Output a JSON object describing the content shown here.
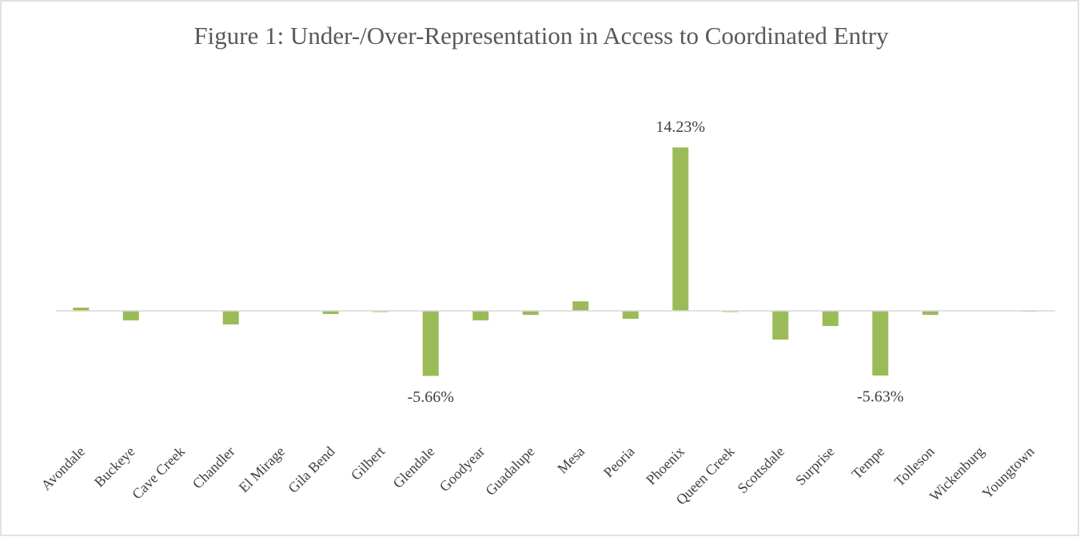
{
  "chart_data": {
    "type": "bar",
    "title": "Figure 1: Under-/Over-Representation in Access to Coordinated Entry",
    "categories": [
      "Avondale",
      "Buckeye",
      "Cave Creek",
      "Chandler",
      "El Mirage",
      "Gila Bend",
      "Gilbert",
      "Glendale",
      "Goodyear",
      "Guadalupe",
      "Mesa",
      "Peoria",
      "Phoenix",
      "Queen Creek",
      "Scottsdale",
      "Surprise",
      "Tempe",
      "Tolleson",
      "Wickenburg",
      "Youngtown"
    ],
    "values": [
      0.28,
      -0.83,
      0,
      -1.18,
      0,
      -0.28,
      -0.1,
      -5.66,
      -0.83,
      -0.35,
      0.83,
      -0.69,
      14.23,
      -0.1,
      -2.5,
      -1.32,
      -5.63,
      -0.35,
      0,
      -0.07
    ],
    "value_labels": [
      null,
      null,
      null,
      null,
      null,
      null,
      null,
      "-5.66%",
      null,
      null,
      null,
      null,
      "14.23%",
      null,
      null,
      null,
      "-5.63%",
      null,
      null,
      null
    ],
    "color": "#9bbb59",
    "ylim": [
      -8,
      16
    ]
  }
}
